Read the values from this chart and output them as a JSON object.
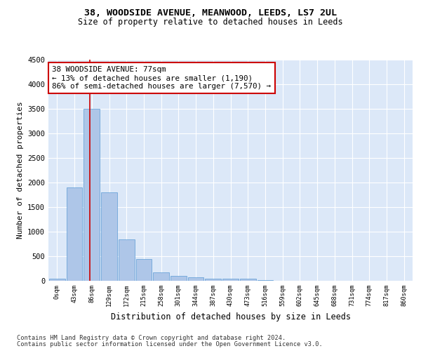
{
  "title1": "38, WOODSIDE AVENUE, MEANWOOD, LEEDS, LS7 2UL",
  "title2": "Size of property relative to detached houses in Leeds",
  "xlabel": "Distribution of detached houses by size in Leeds",
  "ylabel": "Number of detached properties",
  "bar_labels": [
    "0sqm",
    "43sqm",
    "86sqm",
    "129sqm",
    "172sqm",
    "215sqm",
    "258sqm",
    "301sqm",
    "344sqm",
    "387sqm",
    "430sqm",
    "473sqm",
    "516sqm",
    "559sqm",
    "602sqm",
    "645sqm",
    "688sqm",
    "731sqm",
    "774sqm",
    "817sqm",
    "860sqm"
  ],
  "bar_values": [
    50,
    1900,
    3500,
    1800,
    850,
    450,
    175,
    100,
    70,
    50,
    40,
    40,
    10,
    5,
    3,
    2,
    1,
    1,
    0,
    0,
    0
  ],
  "bar_color": "#aec6e8",
  "bar_edge_color": "#5b9bd5",
  "bg_color": "#dce8f8",
  "grid_color": "#ffffff",
  "vline_x": 1.88,
  "vline_color": "#cc0000",
  "annotation_text": "38 WOODSIDE AVENUE: 77sqm\n← 13% of detached houses are smaller (1,190)\n86% of semi-detached houses are larger (7,570) →",
  "annotation_box_color": "#cc0000",
  "ylim": [
    0,
    4500
  ],
  "yticks": [
    0,
    500,
    1000,
    1500,
    2000,
    2500,
    3000,
    3500,
    4000,
    4500
  ],
  "footer1": "Contains HM Land Registry data © Crown copyright and database right 2024.",
  "footer2": "Contains public sector information licensed under the Open Government Licence v3.0."
}
